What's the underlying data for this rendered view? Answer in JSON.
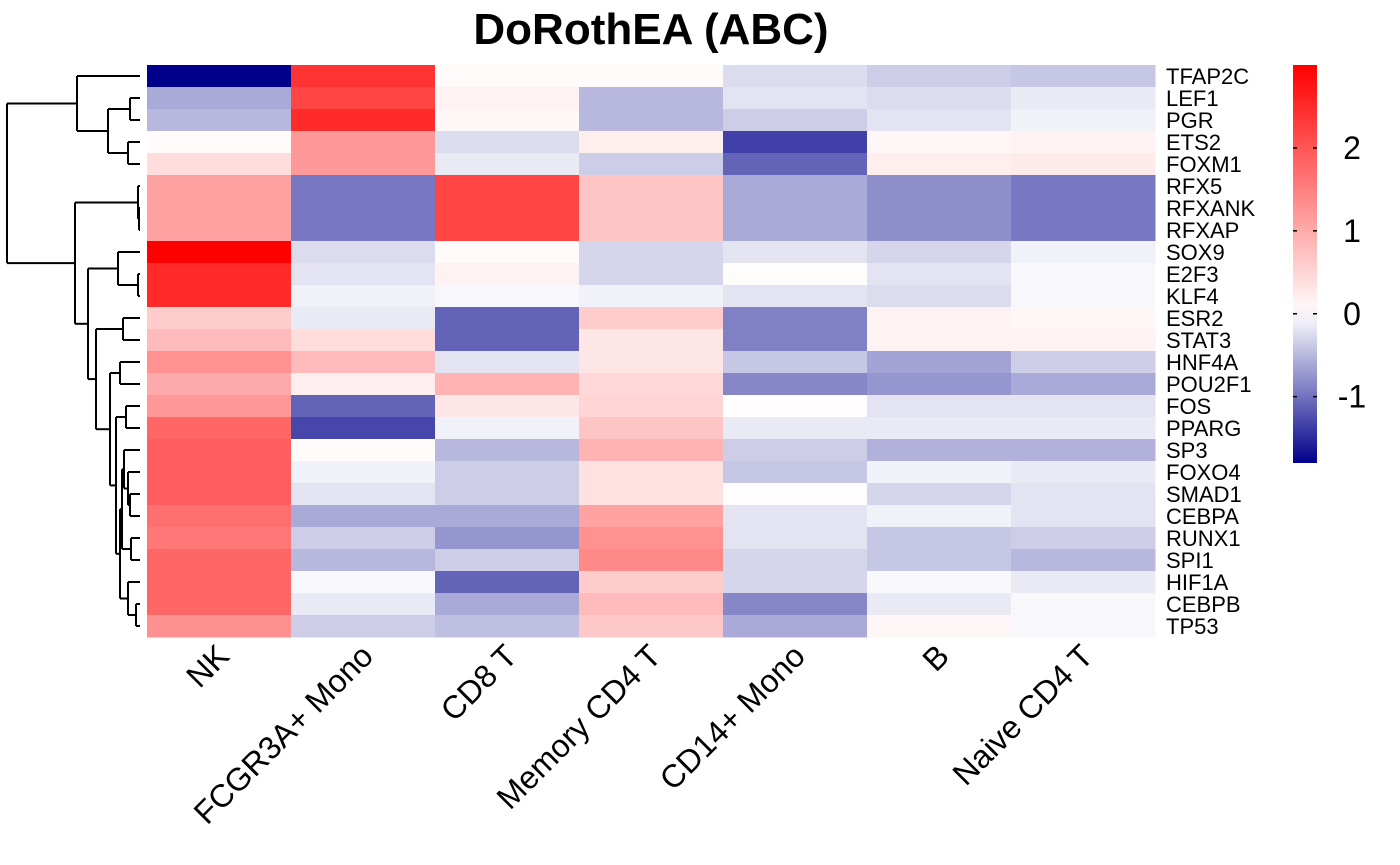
{
  "chart_data": {
    "type": "heatmap",
    "title": "DoRothEA (ABC)",
    "columns": [
      "NK",
      "FCGR3A+ Mono",
      "CD8 T",
      "Memory CD4 T",
      "CD14+ Mono",
      "B",
      "Naive CD4 T"
    ],
    "rows": [
      "TFAP2C",
      "LEF1",
      "PGR",
      "ETS2",
      "FOXM1",
      "RFX5",
      "RFXANK",
      "RFXAP",
      "SOX9",
      "E2F3",
      "KLF4",
      "ESR2",
      "STAT3",
      "HNF4A",
      "POU2F1",
      "FOS",
      "PPARG",
      "SP3",
      "FOXO4",
      "SMAD1",
      "CEBPA",
      "RUNX1",
      "SPI1",
      "HIF1A",
      "CEBPB",
      "TP53"
    ],
    "values": [
      [
        -1.8,
        2.4,
        0.05,
        0.05,
        -0.25,
        -0.35,
        -0.4
      ],
      [
        -0.6,
        2.2,
        0.15,
        -0.5,
        -0.2,
        -0.25,
        -0.15
      ],
      [
        -0.5,
        2.5,
        0.1,
        -0.5,
        -0.35,
        -0.2,
        -0.1
      ],
      [
        0.05,
        1.2,
        -0.25,
        0.2,
        -1.35,
        0.1,
        0.15
      ],
      [
        0.4,
        1.2,
        -0.15,
        -0.35,
        -1.1,
        0.2,
        0.25
      ],
      [
        1.1,
        -0.95,
        2.2,
        0.7,
        -0.6,
        -0.8,
        -0.95
      ],
      [
        1.1,
        -0.95,
        2.2,
        0.7,
        -0.6,
        -0.8,
        -0.95
      ],
      [
        1.1,
        -0.95,
        2.2,
        0.7,
        -0.6,
        -0.8,
        -0.95
      ],
      [
        3.0,
        -0.25,
        0.05,
        -0.3,
        -0.2,
        -0.3,
        -0.1
      ],
      [
        2.5,
        -0.2,
        0.15,
        -0.3,
        0.03,
        -0.2,
        -0.05
      ],
      [
        2.5,
        -0.1,
        -0.05,
        -0.1,
        -0.2,
        -0.25,
        -0.05
      ],
      [
        0.6,
        -0.15,
        -1.1,
        0.6,
        -0.9,
        0.15,
        0.1
      ],
      [
        0.8,
        0.4,
        -1.1,
        0.3,
        -0.9,
        0.15,
        0.15
      ],
      [
        1.3,
        0.8,
        -0.2,
        0.3,
        -0.4,
        -0.65,
        -0.35
      ],
      [
        1.0,
        0.2,
        0.9,
        0.45,
        -0.85,
        -0.75,
        -0.6
      ],
      [
        1.2,
        -1.1,
        0.3,
        0.5,
        0.02,
        -0.2,
        -0.2
      ],
      [
        1.8,
        -1.3,
        -0.1,
        0.7,
        -0.15,
        -0.15,
        -0.15
      ],
      [
        1.9,
        0.05,
        -0.5,
        0.9,
        -0.35,
        -0.55,
        -0.55
      ],
      [
        1.9,
        -0.1,
        -0.35,
        0.35,
        -0.4,
        -0.1,
        -0.15
      ],
      [
        1.9,
        -0.2,
        -0.35,
        0.35,
        0.02,
        -0.3,
        -0.2
      ],
      [
        1.7,
        -0.6,
        -0.6,
        1.1,
        -0.2,
        -0.1,
        -0.2
      ],
      [
        1.6,
        -0.35,
        -0.75,
        1.3,
        -0.2,
        -0.4,
        -0.35
      ],
      [
        1.8,
        -0.5,
        -0.35,
        1.4,
        -0.3,
        -0.4,
        -0.5
      ],
      [
        1.8,
        -0.05,
        -1.1,
        0.6,
        -0.3,
        -0.05,
        -0.15
      ],
      [
        1.8,
        -0.15,
        -0.6,
        0.8,
        -0.85,
        -0.15,
        -0.05
      ],
      [
        1.3,
        -0.35,
        -0.45,
        0.65,
        -0.6,
        0.1,
        -0.05
      ]
    ],
    "color_scale": {
      "min": -1.8,
      "mid": 0,
      "max": 3.0,
      "low_color": "#00008B",
      "mid_color": "#FFFFFF",
      "high_color": "#FF0000"
    },
    "legend_ticks": [
      "2",
      "1",
      "0",
      "-1"
    ],
    "legend_values": [
      2,
      1,
      0,
      -1
    ],
    "row_dendrogram": true,
    "legend_placement": "right"
  }
}
